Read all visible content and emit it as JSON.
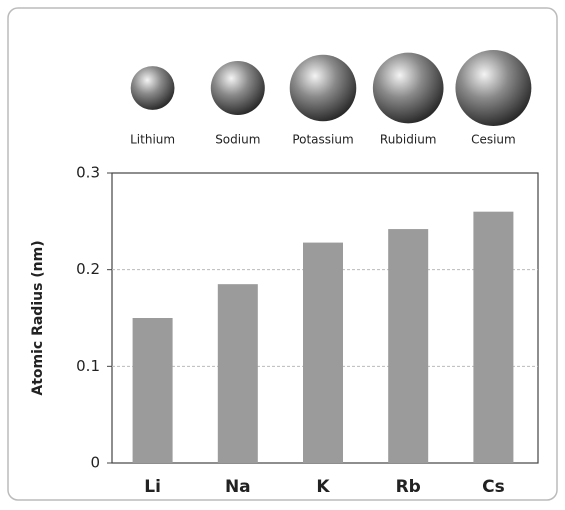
{
  "chart_data": {
    "type": "bar",
    "element_names": [
      "Lithium",
      "Sodium",
      "Potassium",
      "Rubidium",
      "Cesium"
    ],
    "categories": [
      "Li",
      "Na",
      "K",
      "Rb",
      "Cs"
    ],
    "values": [
      0.15,
      0.185,
      0.228,
      0.242,
      0.26
    ],
    "color": "#9b9b9b",
    "y_label": "Atomic Radius (nm)",
    "ylim": [
      0,
      0.3
    ],
    "yticks": [
      0,
      0.1,
      0.2,
      0.3
    ],
    "grid": true
  }
}
